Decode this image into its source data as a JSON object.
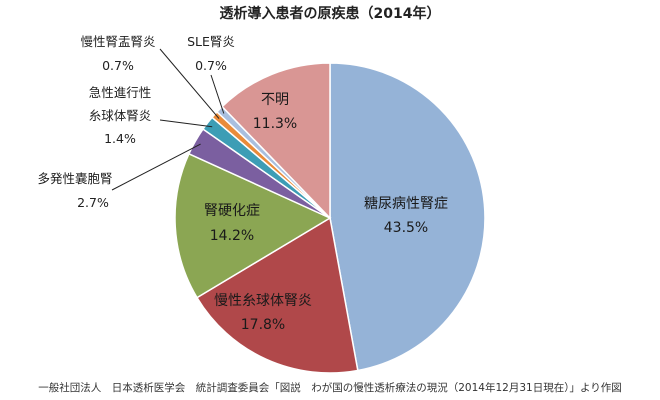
{
  "chart_data": {
    "type": "pie",
    "title": "透析導入患者の原疾患（2014年）",
    "unit": "%",
    "slices": [
      {
        "label": "糖尿病性腎症",
        "value": 43.5,
        "value_text": "43.5%",
        "color": "#95b3d7",
        "label_placement": "inside"
      },
      {
        "label": "慢性糸球体腎炎",
        "value": 17.8,
        "value_text": "17.8%",
        "color": "#b0484a",
        "label_placement": "inside"
      },
      {
        "label": "腎硬化症",
        "value": 14.2,
        "value_text": "14.2%",
        "color": "#8ba653",
        "label_placement": "inside"
      },
      {
        "label": "多発性嚢胞腎",
        "value": 2.7,
        "value_text": "2.7%",
        "color": "#7b5fa0",
        "label_placement": "outside"
      },
      {
        "label": "急性進行性\n糸球体腎炎",
        "value": 1.4,
        "value_text": "1.4%",
        "color": "#3d9db5",
        "label_placement": "outside"
      },
      {
        "label": "慢性腎盂腎炎",
        "value": 0.7,
        "value_text": "0.7%",
        "color": "#e98b3a",
        "label_placement": "outside"
      },
      {
        "label": "SLE腎炎",
        "value": 0.7,
        "value_text": "0.7%",
        "color": "#a9bfdf",
        "label_placement": "outside"
      },
      {
        "label": "不明",
        "value": 11.3,
        "value_text": "11.3%",
        "color": "#d99694",
        "label_placement": "inside"
      }
    ]
  },
  "source_note": "一般社団法人　日本透析医学会　統計調査委員会「図説　わが国の慢性透析療法の現況（2014年12月31日現在）」より作図"
}
